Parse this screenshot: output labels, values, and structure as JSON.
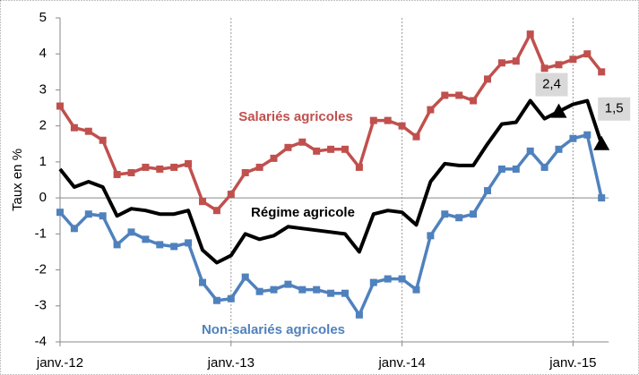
{
  "chart_data": {
    "type": "line",
    "ylabel": "Taux en %",
    "categories": [
      "janv.-12",
      null,
      null,
      null,
      null,
      null,
      null,
      null,
      null,
      null,
      null,
      null,
      "janv.-13",
      null,
      null,
      null,
      null,
      null,
      null,
      null,
      null,
      null,
      null,
      null,
      "janv.-14",
      null,
      null,
      null,
      null,
      null,
      null,
      null,
      null,
      null,
      null,
      null,
      "janv.-15",
      null,
      null
    ],
    "series": [
      {
        "name": "Salariés agricoles",
        "color": "#c0504d",
        "values": [
          2.55,
          1.95,
          1.85,
          1.6,
          0.65,
          0.7,
          0.85,
          0.8,
          0.85,
          0.95,
          -0.1,
          -0.35,
          0.1,
          0.7,
          0.85,
          1.1,
          1.4,
          1.55,
          1.3,
          1.35,
          1.35,
          0.85,
          2.15,
          2.15,
          2.0,
          1.7,
          2.45,
          2.85,
          2.85,
          2.7,
          3.3,
          3.75,
          3.8,
          4.55,
          3.6,
          3.7,
          3.85,
          4.0,
          3.5
        ]
      },
      {
        "name": "Régime agricole",
        "color": "#000000",
        "values": [
          0.8,
          0.3,
          0.45,
          0.3,
          -0.5,
          -0.3,
          -0.35,
          -0.45,
          -0.45,
          -0.35,
          -1.45,
          -1.8,
          -1.6,
          -1.0,
          -1.15,
          -1.05,
          -0.8,
          -0.85,
          -0.9,
          -0.95,
          -1.0,
          -1.5,
          -0.45,
          -0.35,
          -0.4,
          -0.75,
          0.45,
          0.95,
          0.9,
          0.9,
          1.5,
          2.05,
          2.1,
          2.7,
          2.2,
          2.4,
          2.6,
          2.7,
          1.5
        ],
        "value_labels": [
          null,
          null,
          null,
          null,
          null,
          null,
          null,
          null,
          null,
          null,
          null,
          null,
          null,
          null,
          null,
          null,
          null,
          null,
          null,
          null,
          null,
          null,
          null,
          null,
          null,
          null,
          null,
          null,
          null,
          null,
          null,
          null,
          null,
          null,
          null,
          "2,4",
          null,
          null,
          "1,5"
        ]
      },
      {
        "name": "Non-salariés agricoles",
        "color": "#4f81bd",
        "values": [
          -0.4,
          -0.85,
          -0.45,
          -0.5,
          -1.3,
          -0.95,
          -1.15,
          -1.3,
          -1.35,
          -1.25,
          -2.35,
          -2.85,
          -2.8,
          -2.2,
          -2.6,
          -2.55,
          -2.4,
          -2.55,
          -2.55,
          -2.65,
          -2.65,
          -3.25,
          -2.35,
          -2.25,
          -2.25,
          -2.55,
          -1.05,
          -0.45,
          -0.55,
          -0.45,
          0.2,
          0.8,
          0.8,
          1.3,
          0.85,
          1.35,
          1.65,
          1.75,
          0.0
        ]
      }
    ],
    "ylim": [
      -4,
      5
    ],
    "yticks": [
      -4,
      -3,
      -2,
      -1,
      0,
      1,
      2,
      3,
      4,
      5
    ]
  }
}
